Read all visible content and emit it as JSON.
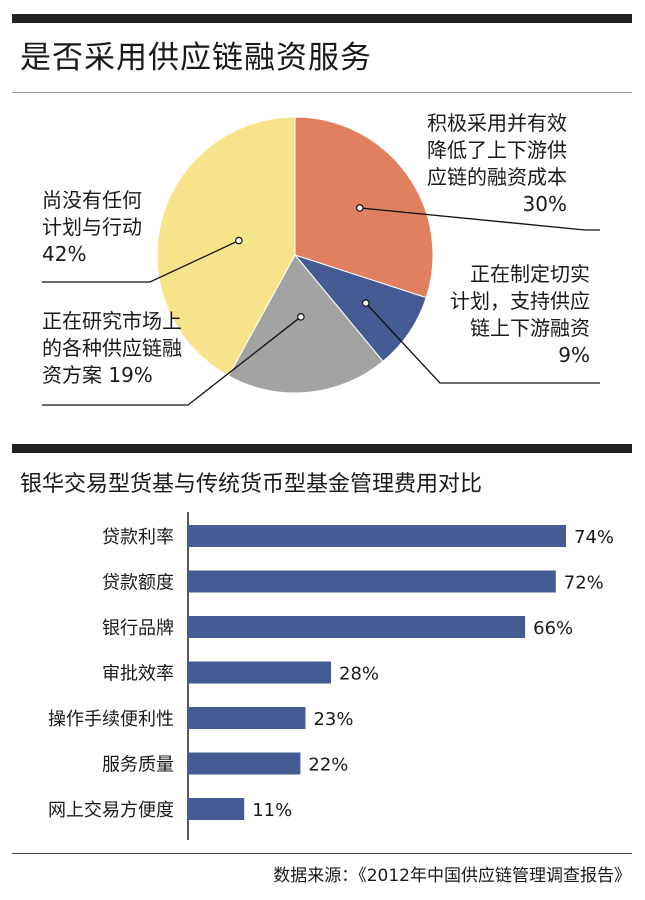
{
  "header": {
    "title1": "是否采用供应链融资服务",
    "title2": "银华交易型货基与传统货币型基金管理费用对比"
  },
  "footer": {
    "source_label": "数据来源：",
    "source_text": "《2012年中国供应链管理调查报告》"
  },
  "chart_data": [
    {
      "type": "pie",
      "title": "是否采用供应链融资服务",
      "slices": [
        {
          "label_lines": [
            "积极采用并有效",
            "降低了上下游供",
            "应链的融资成本",
            "30%"
          ],
          "value": 30,
          "color": "#e0805f"
        },
        {
          "label_lines": [
            "正在制定切实",
            "计划，支持供应",
            "链上下游融资",
            "9%"
          ],
          "value": 9,
          "color": "#465b94"
        },
        {
          "label_lines": [
            "正在研究市场上",
            "的各种供应链融",
            "资方案  19%"
          ],
          "value": 19,
          "color": "#a3a3a3"
        },
        {
          "label_lines": [
            "尚没有任何",
            "计划与行动",
            "42%"
          ],
          "value": 42,
          "color": "#f7e48a"
        }
      ]
    },
    {
      "type": "bar",
      "orientation": "horizontal",
      "title": "银华交易型货基与传统货币型基金管理费用对比",
      "categories": [
        "贷款利率",
        "贷款额度",
        "银行品牌",
        "审批效率",
        "操作手续便利性",
        "服务质量",
        "网上交易方便度"
      ],
      "values": [
        74,
        72,
        66,
        28,
        23,
        22,
        11
      ],
      "value_labels": [
        "74%",
        "72%",
        "66%",
        "28%",
        "23%",
        "22%",
        "11%"
      ],
      "bar_color": "#465b94",
      "xlim": [
        0,
        100
      ]
    }
  ]
}
